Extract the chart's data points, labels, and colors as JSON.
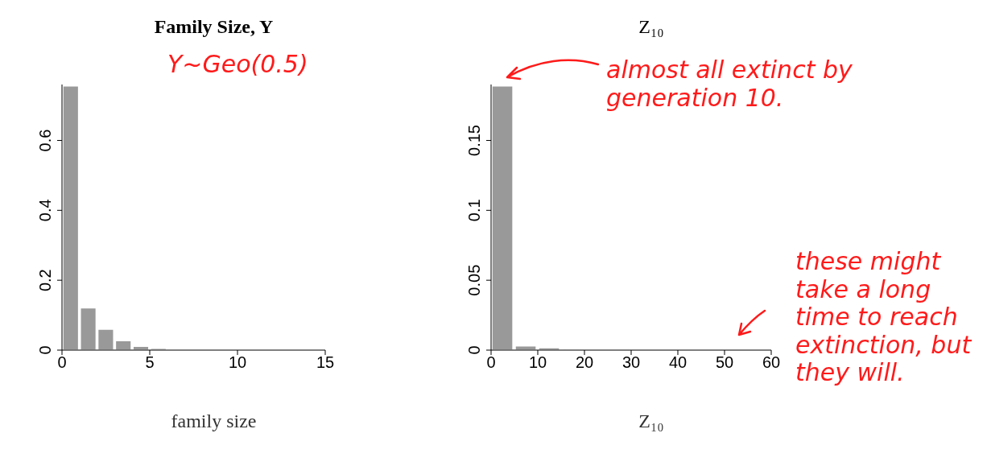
{
  "chart_data": [
    {
      "type": "histogram",
      "title": "Family Size, Y",
      "xlabel": "family size",
      "bins": [
        0,
        1,
        2,
        3,
        4,
        5,
        6,
        7
      ],
      "values": [
        0.756,
        0.121,
        0.06,
        0.027,
        0.011,
        0.005,
        0.002
      ],
      "color": "#999999",
      "xlim": [
        0,
        15
      ],
      "xticks": [
        0,
        5,
        10,
        15
      ],
      "ylim": [
        0,
        0.76
      ],
      "yticks": [
        0,
        0.2,
        0.4,
        0.6
      ],
      "grid": false,
      "annotations": [
        "Y~Geo(0.5)"
      ]
    },
    {
      "type": "histogram",
      "title": "Z₁₀",
      "xlabel": "Z₁₀",
      "bins": [
        0,
        5,
        10,
        15,
        20,
        25
      ],
      "values": [
        0.189,
        0.003,
        0.0017,
        0.0006,
        0.0003
      ],
      "color": "#999999",
      "xlim": [
        0,
        60
      ],
      "xticks": [
        0,
        10,
        20,
        30,
        40,
        50,
        60
      ],
      "ylim": [
        0,
        0.19
      ],
      "yticks": [
        0,
        0.05,
        0.1,
        0.15
      ],
      "grid": false,
      "annotations": [
        "almost all extinct by generation 10.",
        "these might take a long time to reach extinction, but they will."
      ]
    }
  ]
}
